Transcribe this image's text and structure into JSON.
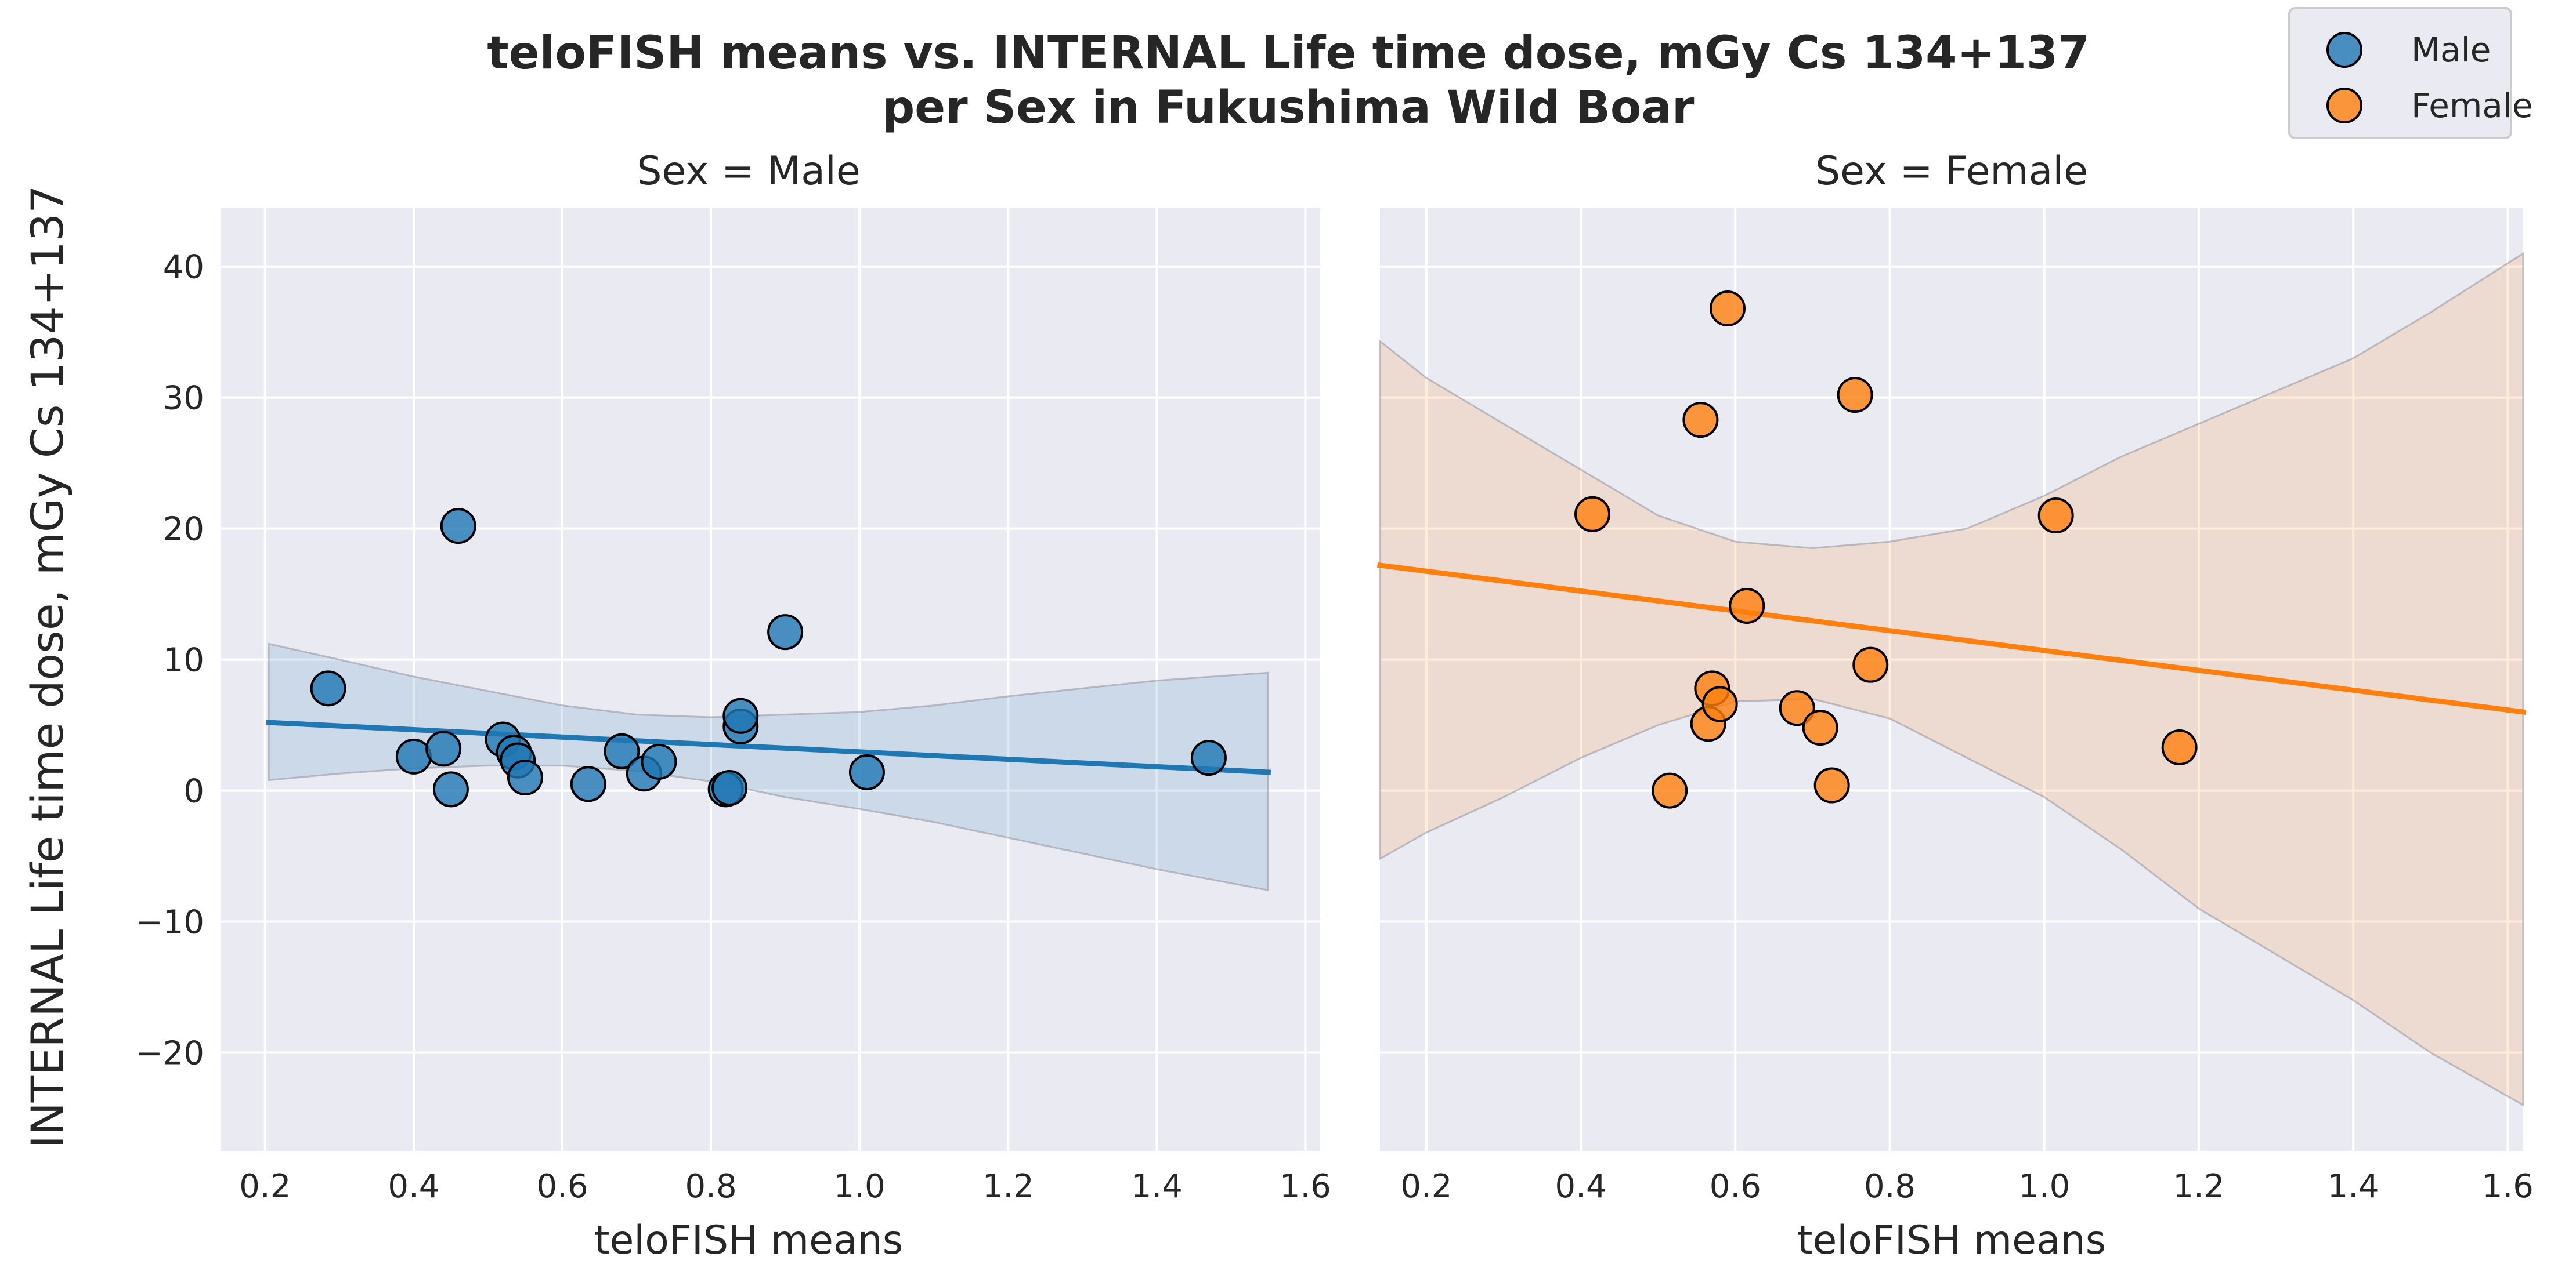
{
  "chart_data": {
    "type": "scatter",
    "title_lines": [
      "teloFISH means vs. INTERNAL Life time dose, mGy Cs 134+137",
      "per Sex in Fukushima Wild Boar"
    ],
    "ylabel": "INTERNAL Life time dose, mGy Cs 134+137",
    "ylim": [
      -27.5,
      44.5
    ],
    "yticks": [
      -20,
      -10,
      0,
      10,
      20,
      30,
      40
    ],
    "grid": true,
    "legend": {
      "placement": "top-right",
      "entries": [
        {
          "label": "Male",
          "color": "#1f77b4"
        },
        {
          "label": "Female",
          "color": "#ff7f0e"
        }
      ]
    },
    "panels": [
      {
        "facet_title": "Sex = Male",
        "xlabel": "teloFISH means",
        "xlim": [
          0.14,
          1.62
        ],
        "xticks": [
          0.2,
          0.4,
          0.6,
          0.8,
          1.0,
          1.2,
          1.4,
          1.6
        ],
        "color": "#1f77b4",
        "points": [
          {
            "x": 0.285,
            "y": 7.8
          },
          {
            "x": 0.4,
            "y": 2.6
          },
          {
            "x": 0.44,
            "y": 3.2
          },
          {
            "x": 0.45,
            "y": 0.1
          },
          {
            "x": 0.46,
            "y": 20.2
          },
          {
            "x": 0.52,
            "y": 3.9
          },
          {
            "x": 0.535,
            "y": 2.9
          },
          {
            "x": 0.54,
            "y": 2.3
          },
          {
            "x": 0.55,
            "y": 1.0
          },
          {
            "x": 0.635,
            "y": 0.5
          },
          {
            "x": 0.68,
            "y": 3.0
          },
          {
            "x": 0.71,
            "y": 1.3
          },
          {
            "x": 0.73,
            "y": 2.2
          },
          {
            "x": 0.82,
            "y": 0.1
          },
          {
            "x": 0.825,
            "y": 0.2
          },
          {
            "x": 0.84,
            "y": 4.9
          },
          {
            "x": 0.84,
            "y": 5.7
          },
          {
            "x": 0.9,
            "y": 12.1
          },
          {
            "x": 1.01,
            "y": 1.4
          },
          {
            "x": 1.47,
            "y": 2.5
          }
        ],
        "regression": {
          "x": [
            0.205,
            1.55
          ],
          "y": [
            5.2,
            1.4
          ]
        },
        "confidence_band": {
          "x": [
            0.205,
            0.3,
            0.4,
            0.5,
            0.6,
            0.7,
            0.8,
            0.9,
            1.0,
            1.1,
            1.2,
            1.3,
            1.4,
            1.55
          ],
          "upper": [
            11.2,
            10.0,
            8.7,
            7.6,
            6.5,
            5.8,
            5.6,
            5.8,
            6.0,
            6.5,
            7.2,
            7.8,
            8.4,
            9.0
          ],
          "lower": [
            0.8,
            1.3,
            1.7,
            1.9,
            1.9,
            1.5,
            0.7,
            -0.5,
            -1.4,
            -2.4,
            -3.6,
            -4.8,
            -6.0,
            -7.6
          ]
        }
      },
      {
        "facet_title": "Sex = Female",
        "xlabel": "teloFISH means",
        "xlim": [
          0.14,
          1.62
        ],
        "xticks": [
          0.2,
          0.4,
          0.6,
          0.8,
          1.0,
          1.2,
          1.4,
          1.6
        ],
        "color": "#ff7f0e",
        "points": [
          {
            "x": 0.415,
            "y": 21.1
          },
          {
            "x": 0.515,
            "y": 0.0
          },
          {
            "x": 0.555,
            "y": 28.3
          },
          {
            "x": 0.565,
            "y": 5.1
          },
          {
            "x": 0.57,
            "y": 7.8
          },
          {
            "x": 0.58,
            "y": 6.6
          },
          {
            "x": 0.59,
            "y": 36.8
          },
          {
            "x": 0.615,
            "y": 14.1
          },
          {
            "x": 0.68,
            "y": 6.3
          },
          {
            "x": 0.71,
            "y": 4.8
          },
          {
            "x": 0.725,
            "y": 0.4
          },
          {
            "x": 0.755,
            "y": 30.2
          },
          {
            "x": 0.775,
            "y": 9.6
          },
          {
            "x": 1.015,
            "y": 21.0
          },
          {
            "x": 1.175,
            "y": 3.3
          }
        ],
        "regression": {
          "x": [
            0.14,
            1.62
          ],
          "y": [
            17.2,
            6.0
          ]
        },
        "confidence_band": {
          "x": [
            0.14,
            0.2,
            0.3,
            0.4,
            0.5,
            0.6,
            0.7,
            0.8,
            0.9,
            1.0,
            1.1,
            1.2,
            1.3,
            1.4,
            1.5,
            1.62
          ],
          "upper": [
            34.3,
            31.5,
            28.0,
            24.5,
            21.0,
            19.0,
            18.5,
            19.0,
            20.0,
            22.5,
            25.5,
            28.0,
            30.5,
            33.0,
            36.5,
            41.0
          ],
          "lower": [
            -5.2,
            -3.2,
            -0.5,
            2.5,
            5.0,
            6.8,
            7.0,
            5.5,
            2.5,
            -0.5,
            -4.5,
            -9.0,
            -12.5,
            -16.0,
            -20.0,
            -24.0
          ]
        }
      }
    ]
  }
}
